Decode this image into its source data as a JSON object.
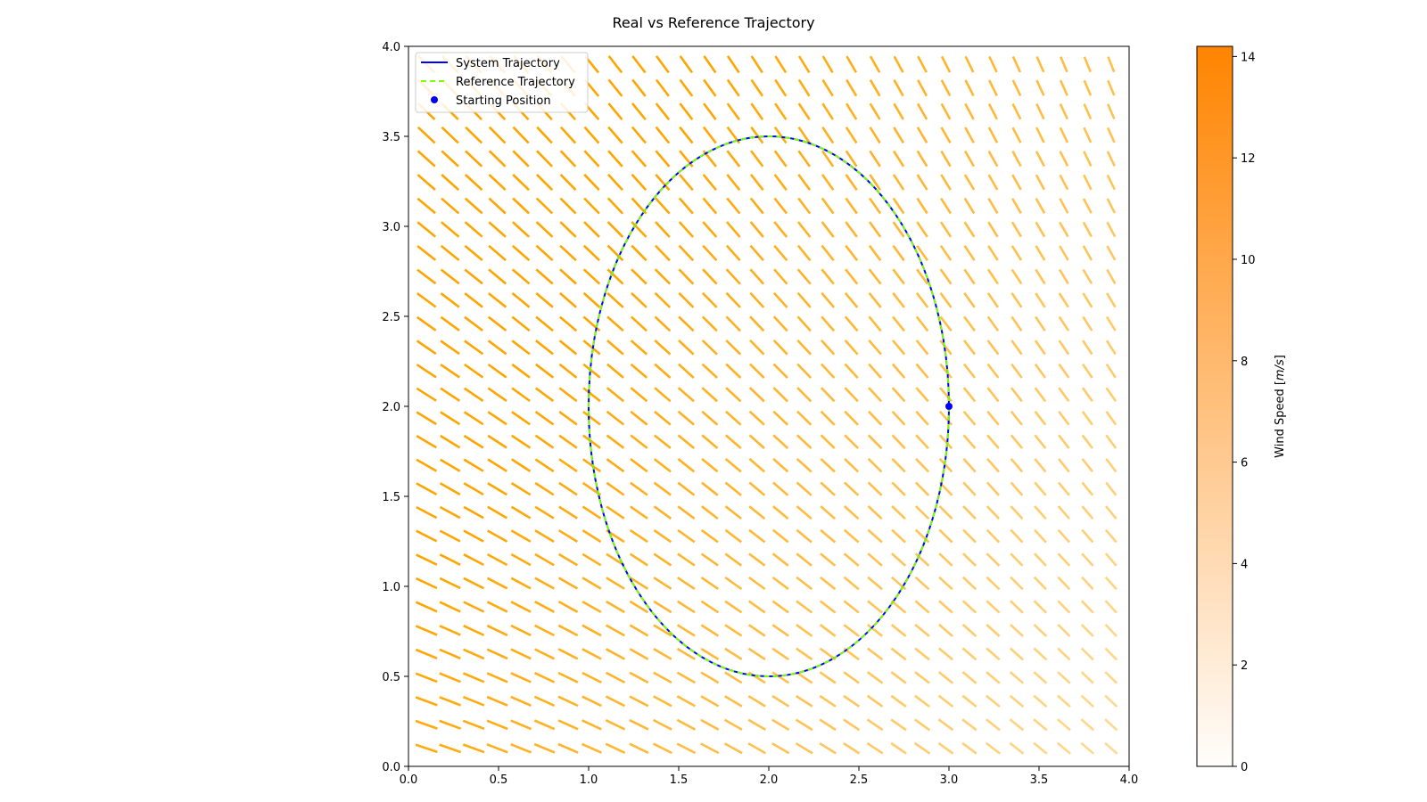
{
  "chart_data": {
    "type": "quiver",
    "title": "Real vs Reference Trajectory",
    "xlabel": "",
    "ylabel": "",
    "xlim": [
      0,
      4
    ],
    "ylim": [
      0,
      4
    ],
    "xticks": [
      "0.0",
      "0.5",
      "1.0",
      "1.5",
      "2.0",
      "2.5",
      "3.0",
      "3.5",
      "4.0"
    ],
    "yticks": [
      "0.0",
      "0.5",
      "1.0",
      "1.5",
      "2.0",
      "2.5",
      "3.0",
      "3.5",
      "4.0"
    ],
    "grid": false,
    "legend_position": "upper-left",
    "legend": [
      {
        "label": "System Trajectory",
        "style": "solid",
        "color": "#0000ff"
      },
      {
        "label": "Reference Trajectory",
        "style": "dashed",
        "color": "#7cfc00"
      },
      {
        "label": "Starting Position",
        "style": "marker",
        "color": "#0000ff"
      }
    ],
    "series": [
      {
        "name": "System Trajectory",
        "kind": "ellipse",
        "center": [
          2.0,
          2.0
        ],
        "radius_x": 1.0,
        "radius_y": 1.5,
        "color": "#0000ff"
      },
      {
        "name": "Reference Trajectory",
        "kind": "ellipse",
        "center": [
          2.0,
          2.0
        ],
        "radius_x": 1.0,
        "radius_y": 1.5,
        "color": "#7cfc00"
      },
      {
        "name": "Starting Position",
        "kind": "point",
        "x": 3.0,
        "y": 2.0,
        "color": "#0000ff"
      }
    ],
    "wind_field": {
      "description": "quiver grid over domain",
      "x_range": [
        0.1,
        3.9
      ],
      "y_range": [
        0.1,
        3.9
      ],
      "grid_count": 30,
      "color": "#ffa500"
    },
    "colorbar": {
      "label": "Wind Speed [m/s]",
      "label_main": "Wind Speed [",
      "label_unit": "m/s",
      "label_close": "]",
      "min": 0,
      "max": 14.2,
      "ticks": [
        "0",
        "2",
        "4",
        "6",
        "8",
        "10",
        "12",
        "14"
      ],
      "color_low": "#fffdfb",
      "color_high": "#ff8400"
    }
  }
}
